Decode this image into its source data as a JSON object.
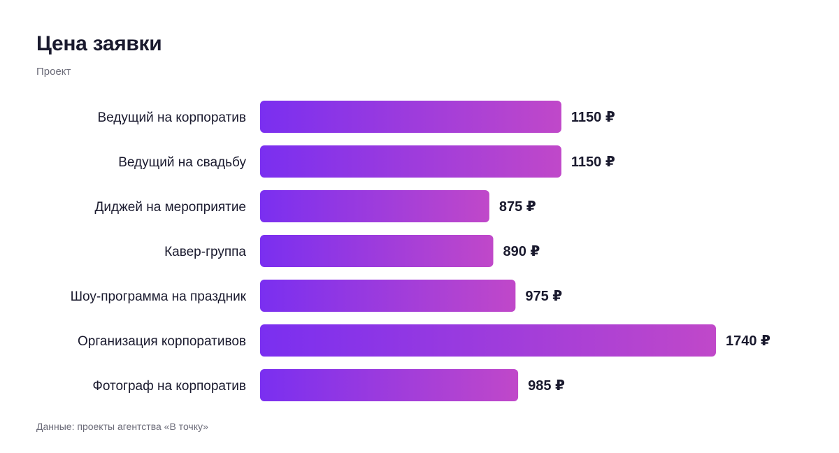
{
  "header": {
    "title": "Цена заявки",
    "subtitle": "Проект"
  },
  "footer": {
    "source": "Данные: проекты агентства «В точку»"
  },
  "colors": {
    "bar_start": "#7a2ff0",
    "bar_end": "#c048c9",
    "text": "#1a1a2e",
    "muted": "#6b6b78"
  },
  "chart_data": {
    "type": "bar",
    "orientation": "horizontal",
    "categories": [
      "Ведущий на корпоратив",
      "Ведущий на свадьбу",
      "Диджей на мероприятие",
      "Кавер-группа",
      "Шоу-программа на праздник",
      "Организация корпоративов",
      "Фотограф на корпоратив"
    ],
    "values": [
      1150,
      1150,
      875,
      890,
      975,
      1740,
      985
    ],
    "value_suffix": " ₽",
    "xlim": [
      0,
      1740
    ],
    "grid": false,
    "legend": "none"
  }
}
